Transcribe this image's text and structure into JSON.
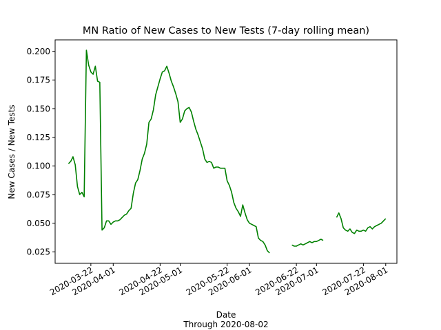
{
  "chart_data": {
    "type": "line",
    "title": "MN Ratio of New Cases to New Tests (7-day rolling mean)",
    "xlabel": "Date",
    "xlabel_note": "Through 2020-08-02",
    "ylabel": "New Cases / New Tests",
    "ylim": [
      0.015,
      0.21
    ],
    "yticks": [
      0.025,
      0.05,
      0.075,
      0.1,
      0.125,
      0.15,
      0.175,
      0.2
    ],
    "ytick_labels": [
      "0.025",
      "0.050",
      "0.075",
      "0.100",
      "0.125",
      "0.150",
      "0.175",
      "0.200"
    ],
    "xlim": [
      "2020-03-06",
      "2020-08-06"
    ],
    "xticks": [
      "2020-03-22",
      "2020-04-01",
      "2020-04-22",
      "2020-05-01",
      "2020-05-22",
      "2020-06-01",
      "2020-06-22",
      "2020-07-01",
      "2020-07-22",
      "2020-08-01"
    ],
    "grid": false,
    "line_color": "#008000",
    "series": [
      {
        "segments": [
          [
            [
              "2020-03-12",
              0.102
            ],
            [
              "2020-03-13",
              0.104
            ],
            [
              "2020-03-14",
              0.108
            ],
            [
              "2020-03-15",
              0.101
            ],
            [
              "2020-03-16",
              0.082
            ],
            [
              "2020-03-17",
              0.075
            ],
            [
              "2020-03-18",
              0.077
            ],
            [
              "2020-03-19",
              0.073
            ],
            [
              "2020-03-20",
              0.201
            ],
            [
              "2020-03-21",
              0.188
            ],
            [
              "2020-03-22",
              0.182
            ],
            [
              "2020-03-23",
              0.18
            ],
            [
              "2020-03-24",
              0.187
            ],
            [
              "2020-03-25",
              0.174
            ],
            [
              "2020-03-26",
              0.173
            ],
            [
              "2020-03-27",
              0.044
            ],
            [
              "2020-03-28",
              0.046
            ],
            [
              "2020-03-29",
              0.052
            ],
            [
              "2020-03-30",
              0.052
            ],
            [
              "2020-03-31",
              0.049
            ],
            [
              "2020-04-01",
              0.051
            ],
            [
              "2020-04-02",
              0.052
            ],
            [
              "2020-04-03",
              0.052
            ],
            [
              "2020-04-04",
              0.053
            ],
            [
              "2020-04-05",
              0.055
            ],
            [
              "2020-04-06",
              0.057
            ],
            [
              "2020-04-07",
              0.058
            ],
            [
              "2020-04-08",
              0.061
            ],
            [
              "2020-04-09",
              0.063
            ],
            [
              "2020-04-10",
              0.076
            ],
            [
              "2020-04-11",
              0.085
            ],
            [
              "2020-04-12",
              0.088
            ],
            [
              "2020-04-13",
              0.096
            ],
            [
              "2020-04-14",
              0.106
            ],
            [
              "2020-04-15",
              0.111
            ],
            [
              "2020-04-16",
              0.119
            ],
            [
              "2020-04-17",
              0.138
            ],
            [
              "2020-04-18",
              0.141
            ],
            [
              "2020-04-19",
              0.149
            ],
            [
              "2020-04-20",
              0.162
            ],
            [
              "2020-04-21",
              0.169
            ],
            [
              "2020-04-22",
              0.176
            ],
            [
              "2020-04-23",
              0.182
            ],
            [
              "2020-04-24",
              0.183
            ],
            [
              "2020-04-25",
              0.187
            ],
            [
              "2020-04-26",
              0.181
            ],
            [
              "2020-04-27",
              0.174
            ],
            [
              "2020-04-28",
              0.169
            ],
            [
              "2020-04-29",
              0.163
            ],
            [
              "2020-04-30",
              0.156
            ],
            [
              "2020-05-01",
              0.138
            ],
            [
              "2020-05-02",
              0.141
            ],
            [
              "2020-05-03",
              0.148
            ],
            [
              "2020-05-04",
              0.15
            ],
            [
              "2020-05-05",
              0.151
            ],
            [
              "2020-05-06",
              0.147
            ],
            [
              "2020-05-07",
              0.139
            ],
            [
              "2020-05-08",
              0.132
            ],
            [
              "2020-05-09",
              0.127
            ],
            [
              "2020-05-10",
              0.121
            ],
            [
              "2020-05-11",
              0.115
            ],
            [
              "2020-05-12",
              0.106
            ],
            [
              "2020-05-13",
              0.103
            ],
            [
              "2020-05-14",
              0.104
            ],
            [
              "2020-05-15",
              0.103
            ],
            [
              "2020-05-16",
              0.098
            ],
            [
              "2020-05-17",
              0.099
            ],
            [
              "2020-05-18",
              0.099
            ],
            [
              "2020-05-19",
              0.098
            ],
            [
              "2020-05-20",
              0.098
            ],
            [
              "2020-05-21",
              0.098
            ],
            [
              "2020-05-22",
              0.087
            ],
            [
              "2020-05-23",
              0.083
            ],
            [
              "2020-05-24",
              0.077
            ],
            [
              "2020-05-25",
              0.068
            ],
            [
              "2020-05-26",
              0.063
            ],
            [
              "2020-05-27",
              0.06
            ],
            [
              "2020-05-28",
              0.056
            ],
            [
              "2020-05-29",
              0.066
            ],
            [
              "2020-05-30",
              0.059
            ],
            [
              "2020-05-31",
              0.053
            ],
            [
              "2020-06-01",
              0.05
            ],
            [
              "2020-06-02",
              0.049
            ],
            [
              "2020-06-03",
              0.048
            ],
            [
              "2020-06-04",
              0.047
            ],
            [
              "2020-06-05",
              0.037
            ],
            [
              "2020-06-06",
              0.035
            ],
            [
              "2020-06-07",
              0.034
            ],
            [
              "2020-06-08",
              0.031
            ],
            [
              "2020-06-09",
              0.026
            ],
            [
              "2020-06-10",
              0.024
            ]
          ],
          [
            [
              "2020-06-20",
              0.031
            ],
            [
              "2020-06-21",
              0.03
            ],
            [
              "2020-06-22",
              0.03
            ],
            [
              "2020-06-23",
              0.031
            ],
            [
              "2020-06-24",
              0.032
            ],
            [
              "2020-06-25",
              0.031
            ],
            [
              "2020-06-26",
              0.032
            ],
            [
              "2020-06-27",
              0.033
            ],
            [
              "2020-06-28",
              0.034
            ],
            [
              "2020-06-29",
              0.033
            ],
            [
              "2020-06-30",
              0.034
            ],
            [
              "2020-07-01",
              0.034
            ],
            [
              "2020-07-02",
              0.035
            ],
            [
              "2020-07-03",
              0.036
            ],
            [
              "2020-07-04",
              0.035
            ]
          ],
          [
            [
              "2020-07-10",
              0.055
            ],
            [
              "2020-07-11",
              0.059
            ],
            [
              "2020-07-12",
              0.054
            ],
            [
              "2020-07-13",
              0.046
            ],
            [
              "2020-07-14",
              0.044
            ],
            [
              "2020-07-15",
              0.043
            ],
            [
              "2020-07-16",
              0.045
            ],
            [
              "2020-07-17",
              0.042
            ],
            [
              "2020-07-18",
              0.041
            ],
            [
              "2020-07-19",
              0.044
            ],
            [
              "2020-07-20",
              0.043
            ],
            [
              "2020-07-21",
              0.043
            ],
            [
              "2020-07-22",
              0.044
            ],
            [
              "2020-07-23",
              0.043
            ],
            [
              "2020-07-24",
              0.046
            ],
            [
              "2020-07-25",
              0.047
            ],
            [
              "2020-07-26",
              0.045
            ],
            [
              "2020-07-27",
              0.047
            ],
            [
              "2020-07-28",
              0.048
            ],
            [
              "2020-07-29",
              0.049
            ],
            [
              "2020-07-30",
              0.05
            ],
            [
              "2020-07-31",
              0.052
            ],
            [
              "2020-08-01",
              0.054
            ]
          ]
        ]
      }
    ]
  }
}
